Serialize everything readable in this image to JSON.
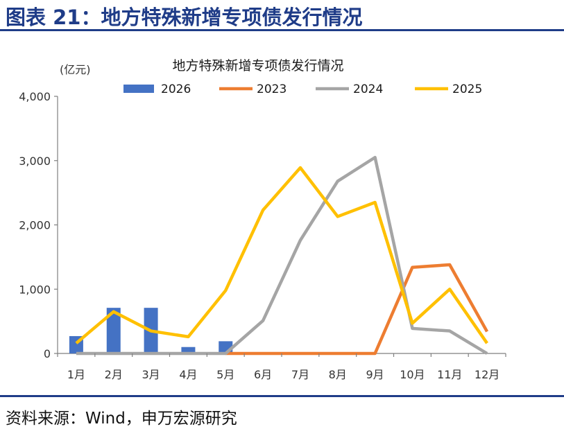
{
  "figure": {
    "label": "图表 21：地方特殊新增专项债发行情况",
    "source": "资料来源：Wind，申万宏源研究"
  },
  "chart_data": {
    "type": "bar+line",
    "title": "地方特殊新增专项债发行情况",
    "unit_label": "(亿元)",
    "categories": [
      "1月",
      "2月",
      "3月",
      "4月",
      "5月",
      "6月",
      "7月",
      "8月",
      "9月",
      "10月",
      "11月",
      "12月"
    ],
    "y_ticks": [
      "4,000",
      "3,000",
      "2,000",
      "1,000",
      "0"
    ],
    "ylim": [
      0,
      4000
    ],
    "legend_position": "top",
    "bar_series": {
      "name": "2026",
      "color": "#4472c4",
      "values": [
        270,
        710,
        710,
        100,
        190,
        null,
        null,
        null,
        null,
        null,
        null,
        null
      ]
    },
    "line_series": [
      {
        "name": "2023",
        "color": "#ed7d31",
        "values": [
          null,
          null,
          null,
          null,
          0,
          0,
          0,
          0,
          0,
          1340,
          1380,
          340
        ]
      },
      {
        "name": "2024",
        "color": "#a5a5a5",
        "values": [
          0,
          0,
          0,
          0,
          0,
          510,
          1760,
          2680,
          3050,
          390,
          350,
          0
        ]
      },
      {
        "name": "2025",
        "color": "#ffc000",
        "values": [
          160,
          650,
          350,
          260,
          980,
          2230,
          2890,
          2130,
          2350,
          470,
          1000,
          160
        ]
      }
    ]
  }
}
